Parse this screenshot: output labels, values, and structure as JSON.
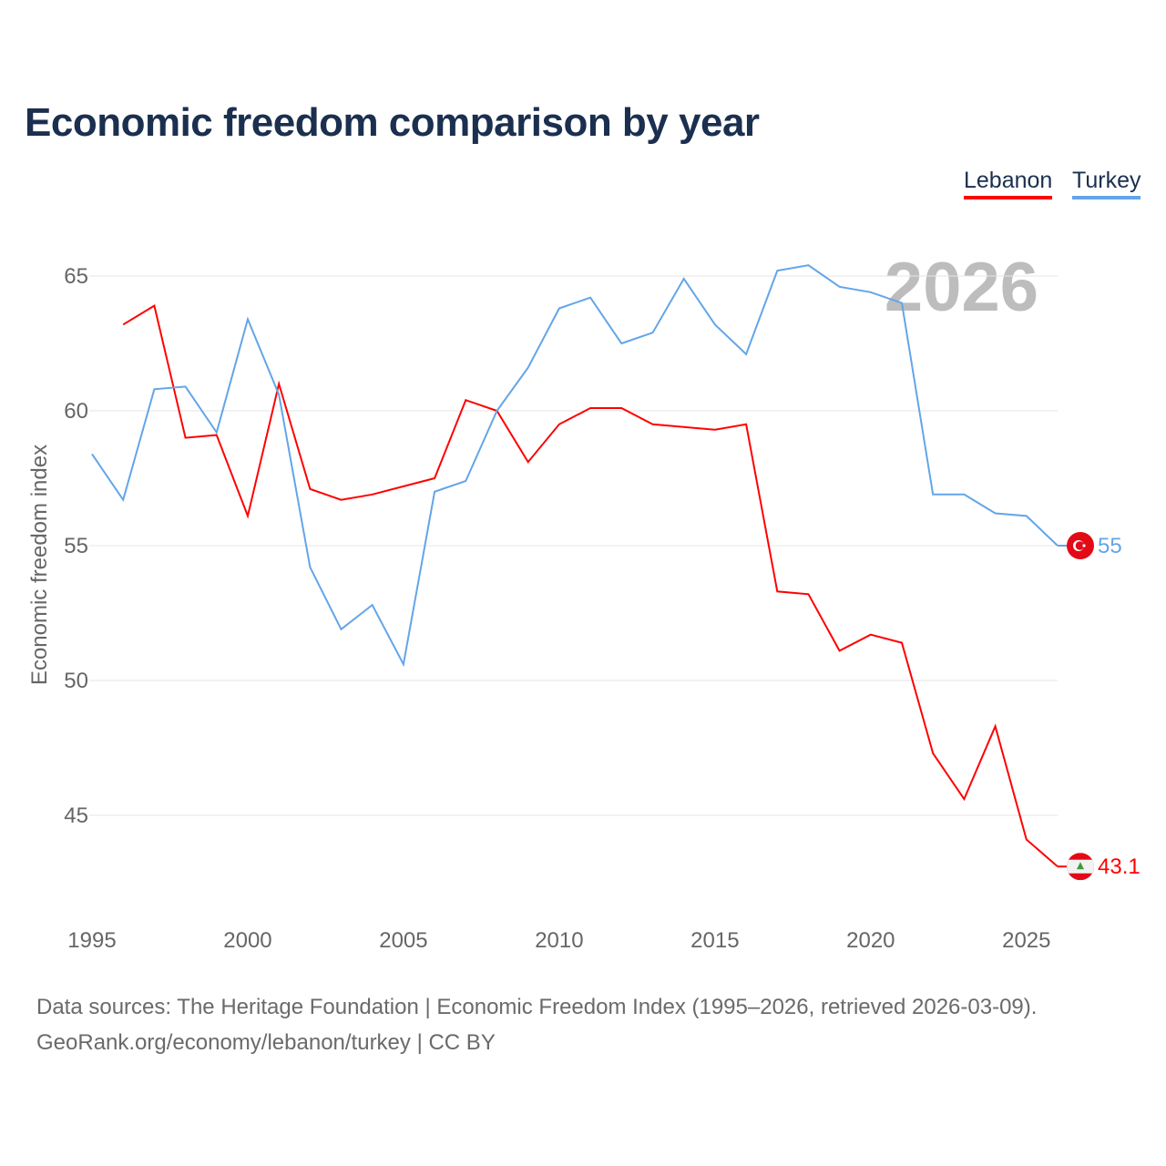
{
  "chart_data": {
    "type": "line",
    "title": "Economic freedom comparison by year",
    "xlabel": "",
    "ylabel": "Economic freedom index",
    "xlim": [
      1995,
      2026
    ],
    "ylim": [
      42,
      67
    ],
    "x_ticks": [
      1995,
      2000,
      2005,
      2010,
      2015,
      2020,
      2025
    ],
    "y_ticks": [
      45,
      50,
      55,
      60,
      65
    ],
    "grid": true,
    "legend_placement": "top-right",
    "watermark_year": "2026",
    "series": [
      {
        "name": "Lebanon",
        "color": "#ff0000",
        "end_label": "43.1",
        "x": [
          1996,
          1997,
          1998,
          1999,
          2000,
          2001,
          2002,
          2003,
          2004,
          2005,
          2006,
          2007,
          2008,
          2009,
          2010,
          2011,
          2012,
          2013,
          2014,
          2015,
          2016,
          2017,
          2018,
          2019,
          2020,
          2021,
          2022,
          2023,
          2024,
          2025,
          2026
        ],
        "values": [
          63.2,
          63.9,
          59.0,
          59.1,
          56.1,
          61.0,
          57.1,
          56.7,
          56.9,
          57.2,
          57.5,
          60.4,
          60.0,
          58.1,
          59.5,
          60.1,
          60.1,
          59.5,
          59.4,
          59.3,
          59.5,
          53.3,
          53.2,
          51.1,
          51.7,
          51.4,
          47.3,
          45.6,
          48.3,
          44.1,
          43.1
        ]
      },
      {
        "name": "Turkey",
        "color": "#63a5e8",
        "end_label": "55",
        "x": [
          1995,
          1996,
          1997,
          1998,
          1999,
          2000,
          2001,
          2002,
          2003,
          2004,
          2005,
          2006,
          2007,
          2008,
          2009,
          2010,
          2011,
          2012,
          2013,
          2014,
          2015,
          2016,
          2017,
          2018,
          2019,
          2020,
          2021,
          2022,
          2023,
          2024,
          2025,
          2026
        ],
        "values": [
          58.4,
          56.7,
          60.8,
          60.9,
          59.2,
          63.4,
          60.6,
          54.2,
          51.9,
          52.8,
          50.6,
          57.0,
          57.4,
          60.0,
          61.6,
          63.8,
          64.2,
          62.5,
          62.9,
          64.9,
          63.2,
          62.1,
          65.2,
          65.4,
          64.6,
          64.4,
          64.0,
          56.9,
          56.9,
          56.2,
          56.1,
          55.0
        ]
      }
    ]
  },
  "legend": {
    "lebanon": "Lebanon",
    "turkey": "Turkey"
  },
  "footer": {
    "line1": "Data sources: The Heritage Foundation | Economic Freedom Index (1995–2026, retrieved 2026-03-09).",
    "line2": "GeoRank.org/economy/lebanon/turkey | CC BY"
  }
}
